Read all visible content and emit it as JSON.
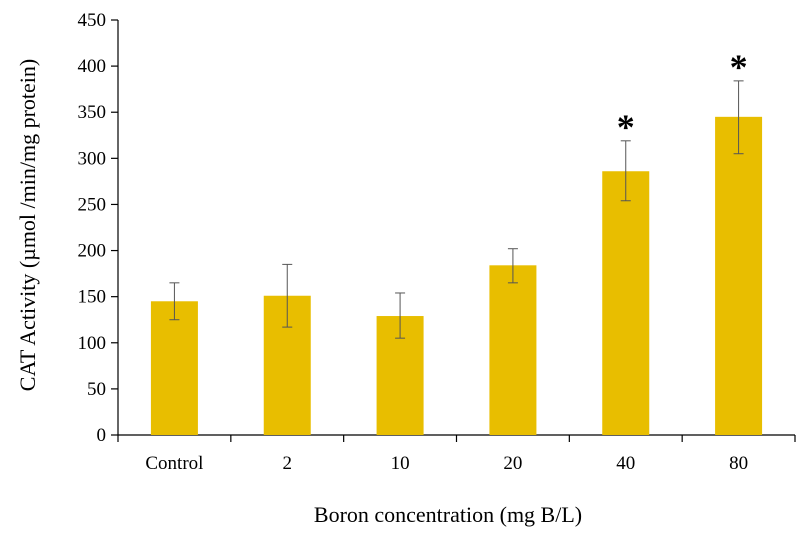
{
  "chart_data": {
    "type": "bar",
    "xlabel": "Boron concentration (mg B/L)",
    "ylabel": "CAT Activity (µmol /min/mg  protein)",
    "ylim": [
      0,
      450
    ],
    "yticks": [
      0,
      50,
      100,
      150,
      200,
      250,
      300,
      350,
      400,
      450
    ],
    "categories": [
      "Control",
      "2",
      "10",
      "20",
      "40",
      "80"
    ],
    "values": [
      145,
      151,
      129,
      184,
      286,
      345
    ],
    "error_low": [
      125,
      117,
      105,
      165,
      254,
      305
    ],
    "error_high": [
      165,
      185,
      154,
      202,
      319,
      384
    ],
    "significance": [
      "",
      "",
      "",
      "",
      "*",
      "*"
    ],
    "grid": false,
    "legend": "none",
    "colors": {
      "bar": "#E8BE00",
      "axis": "#000000",
      "error_bar": "#555555"
    }
  }
}
